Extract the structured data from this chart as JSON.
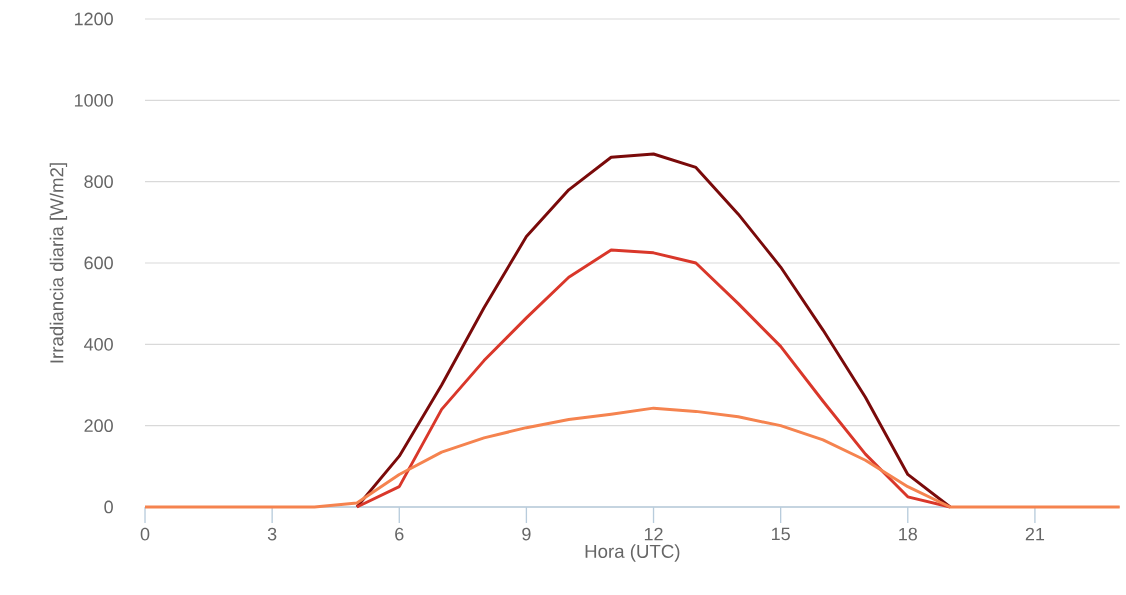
{
  "chart_data": {
    "type": "line",
    "xlabel": "Hora (UTC)",
    "ylabel": "Irradiancia diaria [W/m2]",
    "x": [
      0,
      1,
      2,
      3,
      4,
      5,
      6,
      7,
      8,
      9,
      10,
      11,
      12,
      13,
      14,
      15,
      16,
      17,
      18,
      19,
      20,
      21,
      22,
      23
    ],
    "series": [
      {
        "color": "#7a0a0a",
        "values": [
          null,
          null,
          null,
          null,
          null,
          0,
          125,
          300,
          490,
          665,
          780,
          860,
          868,
          835,
          720,
          590,
          435,
          270,
          80,
          0,
          null,
          null,
          null,
          null
        ]
      },
      {
        "color": "#d9372a",
        "values": [
          null,
          null,
          null,
          null,
          null,
          0,
          50,
          240,
          360,
          465,
          565,
          632,
          625,
          600,
          500,
          395,
          260,
          130,
          25,
          0,
          null,
          null,
          null,
          null
        ]
      },
      {
        "color": "#f5834f",
        "values": [
          0,
          0,
          0,
          0,
          0,
          10,
          80,
          135,
          170,
          195,
          215,
          228,
          243,
          235,
          222,
          200,
          165,
          115,
          50,
          0,
          0,
          0,
          0,
          0
        ]
      }
    ],
    "xlim": [
      0,
      23
    ],
    "ylim": [
      0,
      1200
    ],
    "xticks": [
      0,
      3,
      6,
      9,
      12,
      15,
      18,
      21
    ],
    "yticks": [
      0,
      200,
      400,
      600,
      800,
      1000,
      1200
    ],
    "grid": "y",
    "marker": "none",
    "line_style": "solid"
  }
}
